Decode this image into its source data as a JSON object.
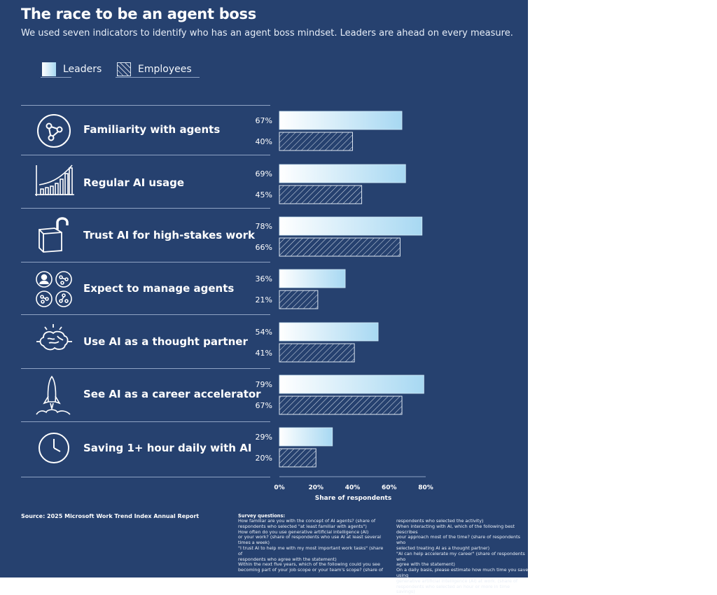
{
  "header": {
    "title": "The race to be an agent boss",
    "subtitle": "We used seven indicators to identify who has an agent boss mindset. Leaders are ahead on every measure."
  },
  "legend": {
    "leaders": "Leaders",
    "employees": "Employees"
  },
  "rows": [
    {
      "label": "Familiarity with agents",
      "icon": "agents-network-icon"
    },
    {
      "label": "Regular AI usage",
      "icon": "bar-chart-icon"
    },
    {
      "label": "Trust AI for high-stakes work",
      "icon": "unlocked-box-icon"
    },
    {
      "label": "Expect to manage agents",
      "icon": "agent-team-icon"
    },
    {
      "label": "Use AI as a thought partner",
      "icon": "brain-icon"
    },
    {
      "label": "See AI as a career accelerator",
      "icon": "rocket-icon"
    },
    {
      "label": "Saving 1+ hour daily with AI",
      "icon": "clock-icon"
    }
  ],
  "chart_data": {
    "type": "bar",
    "orientation": "horizontal",
    "categories": [
      "Familiarity with agents",
      "Regular AI usage",
      "Trust AI for high-stakes work",
      "Expect to manage agents",
      "Use AI as a thought partner",
      "See AI as a career accelerator",
      "Saving 1+ hour daily with AI"
    ],
    "series": [
      {
        "name": "Leaders",
        "values": [
          67,
          69,
          78,
          36,
          54,
          79,
          29
        ],
        "labels": [
          "67%",
          "69%",
          "78%",
          "36%",
          "54%",
          "79%",
          "29%"
        ]
      },
      {
        "name": "Employees",
        "values": [
          40,
          45,
          66,
          21,
          41,
          67,
          20
        ],
        "labels": [
          "40%",
          "45%",
          "66%",
          "21%",
          "41%",
          "67%",
          "20%"
        ]
      }
    ],
    "xlim": [
      0,
      80
    ],
    "xticks": [
      "0%",
      "20%",
      "40%",
      "60%",
      "80%"
    ],
    "xlabel": "Share of respondents",
    "legend": "top-left",
    "colors": {
      "leaders_start": "#ffffff",
      "leaders_end": "#a7d8f2",
      "employees_stroke": "#dde6f1"
    }
  },
  "footer": {
    "source": "Source: 2025 Microsoft Work Trend Index Annual Report",
    "notes_heading": "Survey questions:",
    "notes_col1": "How familiar are you with the concept of AI agents? (share of\nrespondents who selected \"at least familiar with agents\")\nHow often do you use generative artificial intelligence (AI)\nor your work? (share of respondents who use AI at least several\ntimes a week)\n\"I trust AI to help me with my most important work tasks\" (share of\nrespondents who agree with the statement)\nWithin the next five years, which of the following could you see\nbecoming part of your job scope or your team's scope? (share of",
    "notes_col2": "respondents who selected the activity)\nWhen interacting with AI, which of the following best describes\nyour approach most of the time? (share of respondents who\nselected treating AI as a thought partner)\n\"AI can help accelerate my career\" (share of respondents who\nagree with the statement)\nOn a daily basis, please estimate how much time you save using\ngenerative artificial intelligence (AI) at work. (share of\nrespondents who selected an hour or more in time savings)"
  }
}
